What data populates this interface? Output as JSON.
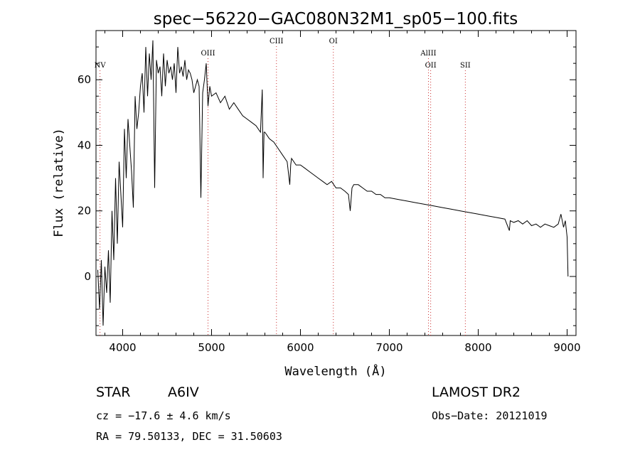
{
  "chart_data": {
    "type": "line",
    "title": "spec−56220−GAC080N32M1_sp05−100.fits",
    "xlabel": "Wavelength (Å)",
    "ylabel": "Flux (relative)",
    "xlim": [
      3700,
      9100
    ],
    "ylim": [
      -18,
      75
    ],
    "x_ticks": [
      4000,
      5000,
      6000,
      7000,
      8000,
      9000
    ],
    "y_ticks": [
      0,
      20,
      40,
      60
    ],
    "grid": false,
    "legend": "none",
    "line_color": "#000000",
    "marker_color": "#cc3333",
    "spectral_lines": [
      {
        "label": "NV",
        "x": 3745
      },
      {
        "label": "OIII",
        "x": 4960
      },
      {
        "label": "CIII",
        "x": 5730
      },
      {
        "label": "OI",
        "x": 6370
      },
      {
        "label": "AlIII",
        "x": 7440
      },
      {
        "label": "OII",
        "x": 7465
      },
      {
        "label": "SII",
        "x": 7855
      }
    ],
    "series": [
      {
        "x": [
          3720,
          3740,
          3760,
          3780,
          3800,
          3820,
          3840,
          3860,
          3880,
          3900,
          3920,
          3940,
          3960,
          3980,
          4000,
          4020,
          4040,
          4060,
          4080,
          4100,
          4120,
          4140,
          4160,
          4180,
          4200,
          4220,
          4240,
          4260,
          4280,
          4300,
          4320,
          4340,
          4360,
          4380,
          4400,
          4420,
          4440,
          4460,
          4480,
          4500,
          4520,
          4540,
          4560,
          4580,
          4600,
          4620,
          4640,
          4660,
          4680,
          4700,
          4720,
          4740,
          4760,
          4780,
          4800,
          4820,
          4840,
          4860,
          4880,
          4900,
          4920,
          4940,
          4960,
          4980,
          5000,
          5050,
          5100,
          5150,
          5200,
          5250,
          5300,
          5350,
          5400,
          5450,
          5500,
          5550,
          5570,
          5580,
          5590,
          5600,
          5650,
          5700,
          5750,
          5800,
          5850,
          5880,
          5890,
          5900,
          5950,
          6000,
          6050,
          6100,
          6150,
          6200,
          6250,
          6300,
          6350,
          6400,
          6450,
          6500,
          6540,
          6560,
          6580,
          6600,
          6650,
          6700,
          6750,
          6800,
          6850,
          6900,
          6950,
          7000,
          7100,
          7200,
          7300,
          7400,
          7500,
          7600,
          7700,
          7800,
          7900,
          8000,
          8100,
          8200,
          8300,
          8350,
          8360,
          8400,
          8450,
          8500,
          8550,
          8600,
          8650,
          8700,
          8750,
          8800,
          8850,
          8900,
          8930,
          8960,
          8980,
          9000,
          9010
        ],
        "y": [
          2,
          -10,
          5,
          -15,
          3,
          -5,
          8,
          -8,
          20,
          5,
          30,
          10,
          35,
          25,
          15,
          45,
          30,
          48,
          40,
          32,
          21,
          55,
          45,
          50,
          58,
          62,
          50,
          70,
          55,
          68,
          60,
          72,
          27,
          66,
          62,
          64,
          55,
          68,
          58,
          66,
          62,
          64,
          60,
          65,
          56,
          70,
          62,
          64,
          61,
          66,
          60,
          63,
          62,
          60,
          56,
          58,
          60,
          58,
          24,
          56,
          60,
          65,
          52,
          58,
          55,
          56,
          53,
          55,
          51,
          53,
          51,
          49,
          48,
          47,
          46,
          44,
          57,
          30,
          44,
          44,
          42,
          41,
          39,
          37,
          35,
          28,
          34,
          36,
          34,
          34,
          33,
          32,
          31,
          30,
          29,
          28,
          29,
          27,
          27,
          26,
          25,
          20,
          27,
          28,
          28,
          27,
          26,
          26,
          25,
          25,
          24,
          24,
          23.5,
          23,
          22.5,
          22,
          21.5,
          21,
          20.5,
          20,
          19.5,
          19,
          18.5,
          18,
          17.5,
          14,
          17,
          16.5,
          17,
          16,
          17,
          15.5,
          16,
          15,
          16,
          15.5,
          15,
          16,
          19,
          15,
          17,
          12,
          0
        ]
      }
    ]
  },
  "info": {
    "object_class": "STAR",
    "subclass": "A6IV",
    "survey": "LAMOST DR2",
    "redshift_text": "cz = −17.6 ± 4.6 km/s",
    "obs_date_text": "Obs−Date: 20121019",
    "coords_text": "RA =  79.50133, DEC =  31.50603"
  }
}
